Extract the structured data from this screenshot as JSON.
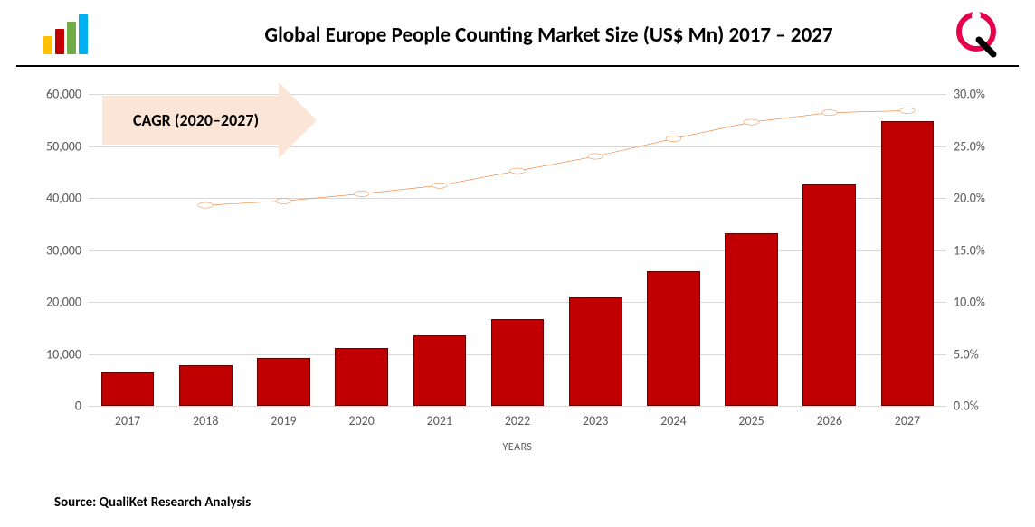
{
  "header": {
    "title": "Global Europe People Counting Market Size (US$ Mn) 2017 – 2027",
    "logo_bar_colors": [
      "#ffc000",
      "#c00000",
      "#70ad47",
      "#00b0f0"
    ],
    "logo_bar_heights": [
      20,
      28,
      36,
      44
    ],
    "brand_ring_color": "#e6004c",
    "brand_tail_color": "#000000"
  },
  "chart": {
    "type": "bar+line",
    "categories": [
      "2017",
      "2018",
      "2019",
      "2020",
      "2021",
      "2022",
      "2023",
      "2024",
      "2025",
      "2026",
      "2027"
    ],
    "bar_values": [
      6500,
      7800,
      9300,
      11200,
      13600,
      16700,
      20800,
      26000,
      33200,
      42600,
      54800
    ],
    "bar_color": "#c00000",
    "line_values_pct": [
      null,
      19.3,
      19.7,
      20.4,
      21.2,
      22.6,
      24.0,
      25.7,
      27.3,
      28.2,
      28.4
    ],
    "line_color": "#ed7d31",
    "marker_fill": "#ffffff",
    "y_left": {
      "min": 0,
      "max": 60000,
      "step": 10000
    },
    "y_right": {
      "min": 0,
      "max": 30,
      "step": 5,
      "suffix": "%"
    },
    "x_axis_title": "YEARS",
    "grid_color": "#d9d9d9",
    "background_color": "#ffffff"
  },
  "annotations": {
    "cagr_label": "CAGR (2020–2027)",
    "cagr_bg": "#fbe5d6"
  },
  "footer": {
    "source": "Source: QualiKet Research Analysis"
  }
}
